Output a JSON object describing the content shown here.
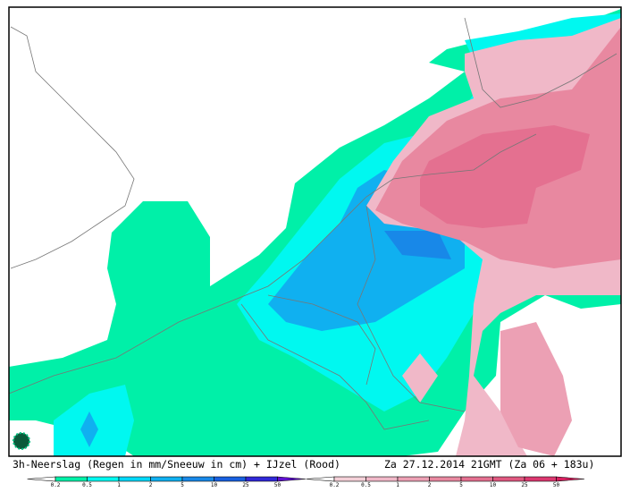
{
  "caption": {
    "left": "3h-Neerslag (Regen in mm/Sneeuw in cm) + IJzel (Rood)",
    "right": "Za 27.12.2014 21GMT (Za 06 + 183u)"
  },
  "legend_rain": {
    "labels": [
      "0.2",
      "0.5",
      "1",
      "2",
      "5",
      "10",
      "25",
      "50"
    ],
    "colors": [
      "#ffffff",
      "#00f0a8",
      "#00f8f0",
      "#00d8f8",
      "#10b0f0",
      "#1888e8",
      "#1860e0",
      "#3028d8",
      "#6010d0"
    ]
  },
  "legend_ice": {
    "labels": [
      "0.2",
      "0.5",
      "1",
      "2",
      "5",
      "10",
      "25",
      "50"
    ],
    "colors": [
      "#ffffff",
      "#f4d0d8",
      "#f0b8c8",
      "#eca0b4",
      "#e888a0",
      "#e47090",
      "#e05880",
      "#dc3870",
      "#d82060"
    ]
  }
}
